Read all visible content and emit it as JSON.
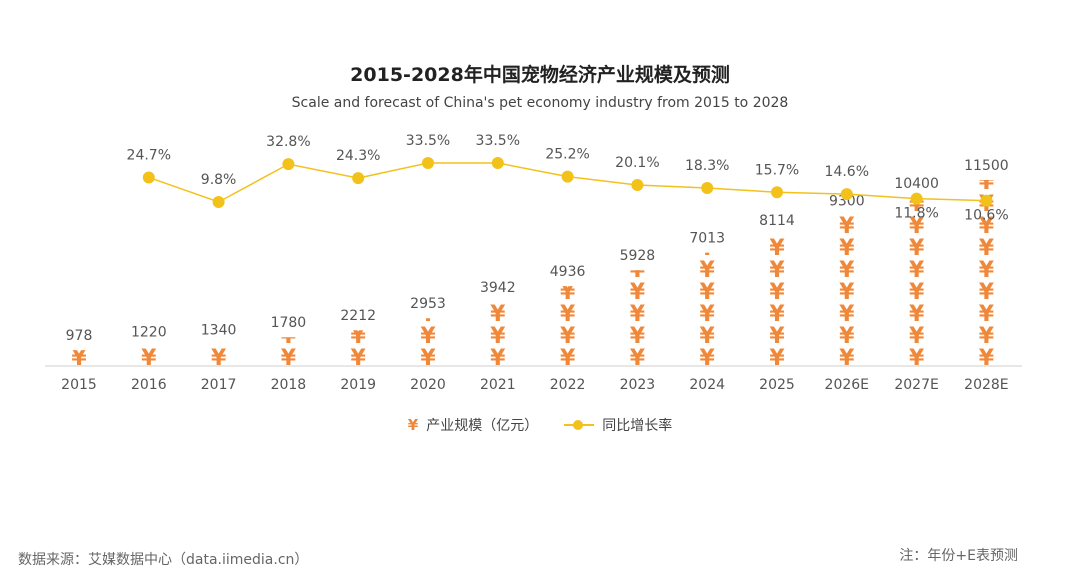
{
  "chart_data": {
    "type": "bar+line",
    "title": "2015-2028年中国宠物经济产业规模及预测",
    "subtitle": "Scale and forecast of China's pet economy industry from 2015 to 2028",
    "categories": [
      "2015",
      "2016",
      "2017",
      "2018",
      "2019",
      "2020",
      "2021",
      "2022",
      "2023",
      "2024",
      "2025",
      "2026E",
      "2027E",
      "2028E"
    ],
    "series": [
      {
        "name": "产业规模（亿元）",
        "type": "pictorial-bar",
        "symbol": "¥",
        "color": "#f0883a",
        "values": [
          978,
          1220,
          1340,
          1780,
          2212,
          2953,
          3942,
          4936,
          5928,
          7013,
          8114,
          9300,
          10400,
          11500
        ],
        "labels": [
          "978",
          "1220",
          "1340",
          "1780",
          "2212",
          "2953",
          "3942",
          "4936",
          "5928",
          "7013",
          "8114",
          "9300",
          "10400",
          "11500"
        ]
      },
      {
        "name": "同比增长率",
        "type": "line",
        "color": "#f2c21b",
        "values": [
          null,
          24.7,
          9.8,
          32.8,
          24.3,
          33.5,
          33.5,
          25.2,
          20.1,
          18.3,
          15.7,
          14.6,
          11.8,
          10.6
        ],
        "labels": [
          "",
          "24.7%",
          "9.8%",
          "32.8%",
          "24.3%",
          "33.5%",
          "33.5%",
          "25.2%",
          "20.1%",
          "18.3%",
          "15.7%",
          "14.6%",
          "11.8%",
          "10.6%"
        ]
      }
    ],
    "ylim_bar": [
      0,
      11500
    ],
    "ylim_line": [
      0,
      40
    ],
    "legend": "bottom-center"
  },
  "legend": {
    "bar_label": "产业规模（亿元）",
    "line_label": "同比增长率"
  },
  "footer": {
    "source": "数据来源：艾媒数据中心（data.iimedia.cn）",
    "note": "注：年份+E表预测"
  }
}
